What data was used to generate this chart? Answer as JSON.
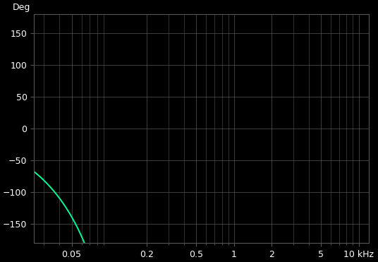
{
  "title": "",
  "xlabel": "kHz",
  "ylabel": "Deg",
  "background_color": "#000000",
  "grid_color": "#555555",
  "line_color": "#00bb66",
  "line_color2": "#00ff99",
  "xmin": 0.025,
  "xmax": 12.0,
  "ymin": -180,
  "ymax": 180,
  "yticks": [
    -150,
    -100,
    -50,
    0,
    50,
    100,
    150
  ],
  "xticks": [
    0.05,
    0.2,
    0.5,
    1.0,
    2.0,
    5.0,
    10.0
  ],
  "xtick_labels": [
    "0.05",
    "0.2",
    "0.5",
    "1",
    "2",
    "5",
    "10 kHz"
  ],
  "crossover_freq_khz": 0.7,
  "figsize": [
    5.36,
    3.71
  ],
  "dpi": 100
}
